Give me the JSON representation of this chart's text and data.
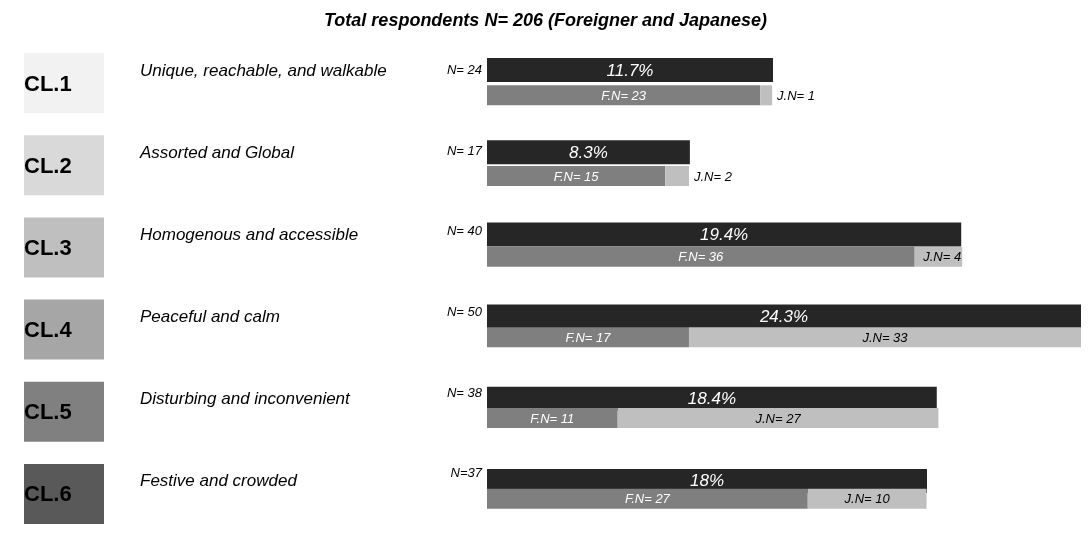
{
  "chart_data": [
    {
      "type": "bar",
      "orientation": "horizontal",
      "title": "Total respondents N= 206 (Foreigner and Japanese)",
      "categories": [
        "Unique, reachable, and walkable",
        "Assorted and Global",
        "Homogenous and accessible",
        "Peaceful and calm",
        "Disturbing and inconvenient",
        "Festive and crowded"
      ],
      "series": [
        {
          "color": "#262626",
          "values": [
            11.7,
            8.3,
            19.4,
            24.3,
            18.4,
            18
          ],
          "value_labels": [
            "11.7%",
            "8.3%",
            "19.4%",
            "24.3%",
            "18.4%",
            "18%"
          ]
        }
      ],
      "annotations": [
        "CL.1",
        "CL.2",
        "CL.3",
        "CL.4",
        "CL.5",
        "CL.6"
      ],
      "tick_labels": "y"
    },
    {
      "type": "bar",
      "orientation": "horizontal",
      "stacked": true,
      "categories": [
        "Unique, reachable, and walkable",
        "Assorted and Global",
        "Homogenous and accessible",
        "Peaceful and calm",
        "Disturbing and inconvenient",
        "Festive and crowded"
      ],
      "series": [
        {
          "color": "#7f7f7f",
          "values": [
            23,
            15,
            36,
            17,
            11,
            27
          ],
          "value_labels": [
            "F.N= 23",
            "F.N= 15",
            "F.N= 36",
            "F.N= 17",
            "F.N= 11",
            "F.N= 27"
          ]
        },
        {
          "color": "#bfbfbf",
          "values": [
            1,
            2,
            4,
            33,
            27,
            10
          ],
          "value_labels": [
            "J.N= 1",
            "J.N= 2",
            "J.N= 4",
            "J.N= 33",
            "J.N= 27",
            "J.N= 10"
          ]
        }
      ],
      "totals": [
        "N= 24",
        "N= 17",
        "N= 40",
        "N= 50",
        "N= 38",
        "N=37"
      ],
      "tick_labels": false
    }
  ]
}
